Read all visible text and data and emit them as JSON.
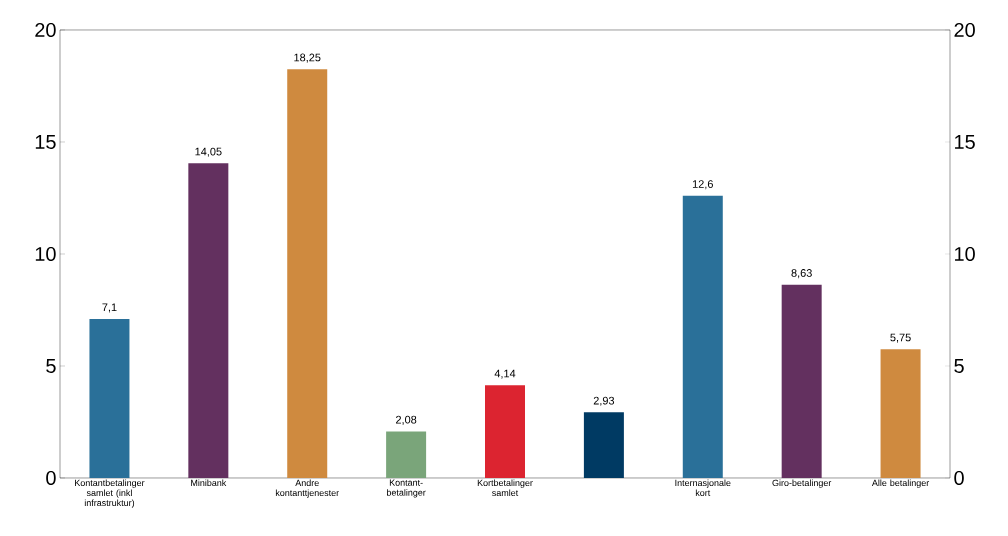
{
  "chart_data": {
    "type": "bar",
    "categories": [
      "Kontantbetalinger samlet (inkl infrastruktur)",
      "Minibank",
      "Andre kontanttjenester",
      "Kontant-betalinger",
      "Kortbetalinger samlet",
      null,
      "Internasjonale kort",
      "Giro-betalinger",
      "Alle betalinger"
    ],
    "values": [
      7.1,
      14.05,
      18.25,
      2.08,
      4.14,
      2.93,
      12.6,
      8.63,
      5.75
    ],
    "value_labels": [
      "7,1",
      "14,05",
      "18,25",
      "2,08",
      "4,14",
      "2,93",
      "12,6",
      "8,63",
      "5,75"
    ],
    "colors": [
      "#2a7099",
      "#63305f",
      "#cf8a3f",
      "#7aa57a",
      "#dc2430",
      "#003a63",
      "#2a7099",
      "#63305f",
      "#cf8a3f"
    ],
    "ylim": [
      0,
      20
    ],
    "yticks": [
      0,
      5,
      10,
      15,
      20
    ],
    "y2lim": [
      0,
      20
    ],
    "y2ticks": [
      0,
      5,
      10,
      15,
      20
    ],
    "grid": false
  }
}
